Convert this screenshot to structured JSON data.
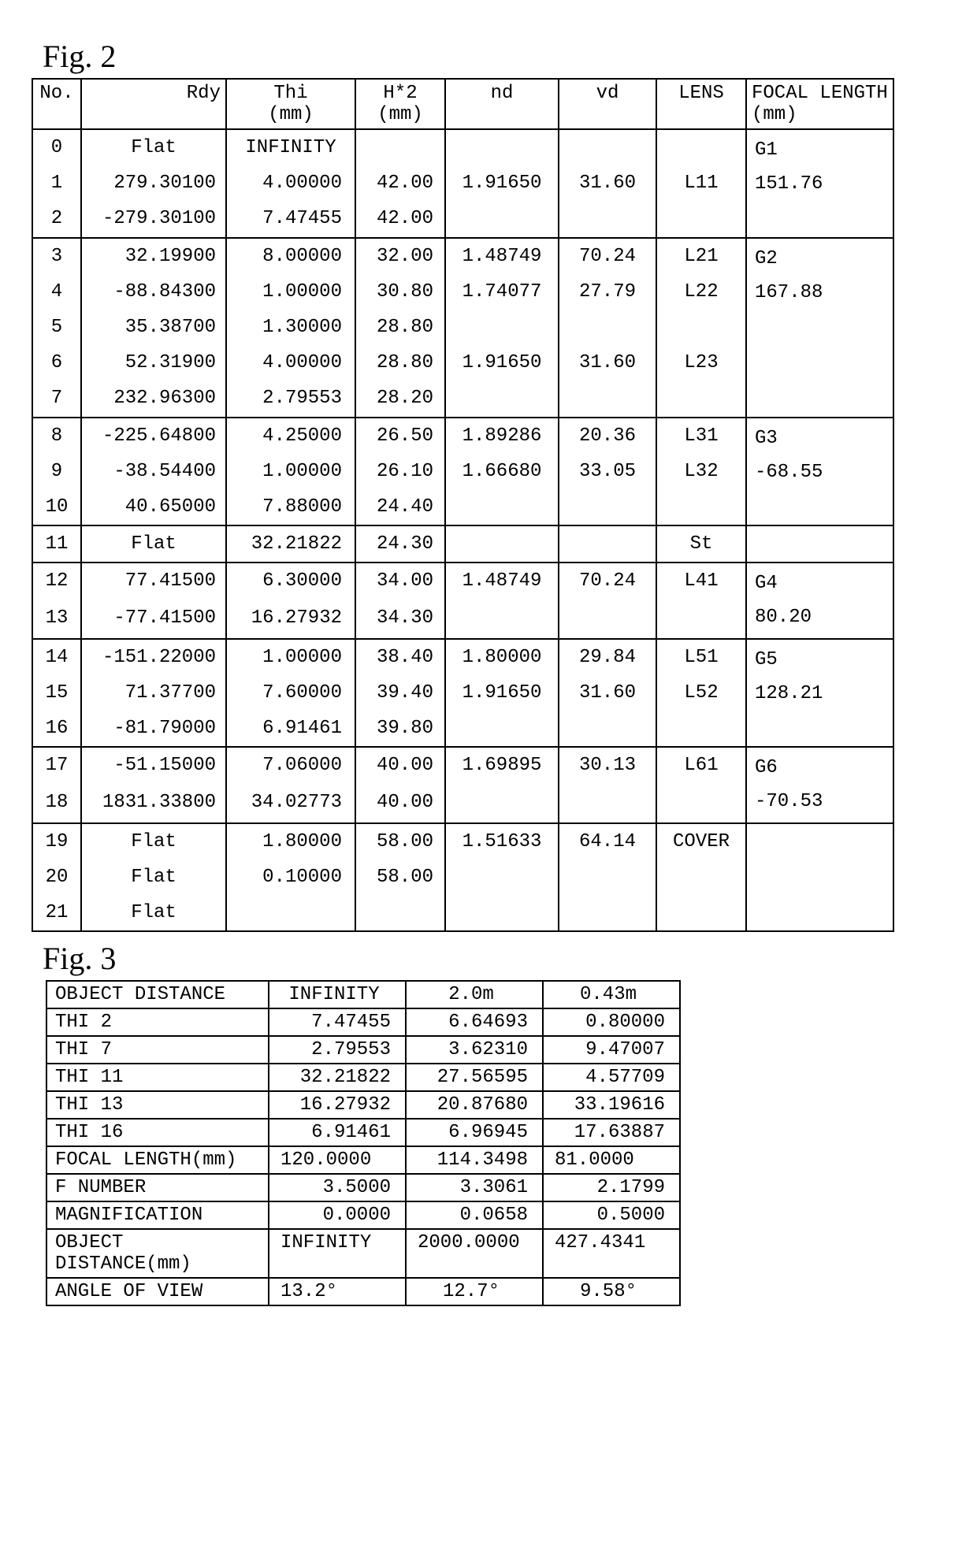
{
  "fig2": {
    "label": "Fig. 2",
    "headers": [
      "No.",
      "Rdy",
      "Thi\n(mm)",
      "H*2\n(mm)",
      "nd",
      "vd",
      "LENS",
      "FOCAL LENGTH\n(mm)"
    ],
    "groups": [
      {
        "rows": [
          {
            "no": "0",
            "rdy": "Flat",
            "rdyC": true,
            "thi": "INFINITY",
            "thiC": true,
            "h2": "",
            "nd": "",
            "vd": "",
            "lens": ""
          },
          {
            "no": "1",
            "rdy": "279.30100",
            "thi": "4.00000",
            "h2": "42.00",
            "nd": "1.91650",
            "vd": "31.60",
            "lens": "L11"
          },
          {
            "no": "2",
            "rdy": "-279.30100",
            "thi": "7.47455",
            "h2": "42.00",
            "nd": "",
            "vd": "",
            "lens": ""
          }
        ],
        "focal": "G1\n151.76"
      },
      {
        "rows": [
          {
            "no": "3",
            "rdy": "32.19900",
            "thi": "8.00000",
            "h2": "32.00",
            "nd": "1.48749",
            "vd": "70.24",
            "lens": "L21"
          },
          {
            "no": "4",
            "rdy": "-88.84300",
            "thi": "1.00000",
            "h2": "30.80",
            "nd": "1.74077",
            "vd": "27.79",
            "lens": "L22"
          },
          {
            "no": "5",
            "rdy": "35.38700",
            "thi": "1.30000",
            "h2": "28.80",
            "nd": "",
            "vd": "",
            "lens": ""
          },
          {
            "no": "6",
            "rdy": "52.31900",
            "thi": "4.00000",
            "h2": "28.80",
            "nd": "1.91650",
            "vd": "31.60",
            "lens": "L23"
          },
          {
            "no": "7",
            "rdy": "232.96300",
            "thi": "2.79553",
            "h2": "28.20",
            "nd": "",
            "vd": "",
            "lens": ""
          }
        ],
        "focal": "G2\n167.88"
      },
      {
        "rows": [
          {
            "no": "8",
            "rdy": "-225.64800",
            "thi": "4.25000",
            "h2": "26.50",
            "nd": "1.89286",
            "vd": "20.36",
            "lens": "L31"
          },
          {
            "no": "9",
            "rdy": "-38.54400",
            "thi": "1.00000",
            "h2": "26.10",
            "nd": "1.66680",
            "vd": "33.05",
            "lens": "L32"
          },
          {
            "no": "10",
            "rdy": "40.65000",
            "thi": "7.88000",
            "h2": "24.40",
            "nd": "",
            "vd": "",
            "lens": ""
          }
        ],
        "focal": "G3\n-68.55"
      },
      {
        "rows": [
          {
            "no": "11",
            "rdy": "Flat",
            "rdyC": true,
            "thi": "32.21822",
            "h2": "24.30",
            "nd": "",
            "vd": "",
            "lens": "St"
          }
        ],
        "focal": ""
      },
      {
        "rows": [
          {
            "no": "12",
            "rdy": "77.41500",
            "thi": "6.30000",
            "h2": "34.00",
            "nd": "1.48749",
            "vd": "70.24",
            "lens": "L41"
          },
          {
            "no": "13",
            "rdy": "-77.41500",
            "thi": "16.27932",
            "h2": "34.30",
            "nd": "",
            "vd": "",
            "lens": ""
          }
        ],
        "focal": "G4\n80.20"
      },
      {
        "rows": [
          {
            "no": "14",
            "rdy": "-151.22000",
            "thi": "1.00000",
            "h2": "38.40",
            "nd": "1.80000",
            "vd": "29.84",
            "lens": "L51"
          },
          {
            "no": "15",
            "rdy": "71.37700",
            "thi": "7.60000",
            "h2": "39.40",
            "nd": "1.91650",
            "vd": "31.60",
            "lens": "L52"
          },
          {
            "no": "16",
            "rdy": "-81.79000",
            "thi": "6.91461",
            "h2": "39.80",
            "nd": "",
            "vd": "",
            "lens": ""
          }
        ],
        "focal": "G5\n128.21"
      },
      {
        "rows": [
          {
            "no": "17",
            "rdy": "-51.15000",
            "thi": "7.06000",
            "h2": "40.00",
            "nd": "1.69895",
            "vd": "30.13",
            "lens": "L61"
          },
          {
            "no": "18",
            "rdy": "1831.33800",
            "thi": "34.02773",
            "h2": "40.00",
            "nd": "",
            "vd": "",
            "lens": ""
          }
        ],
        "focal": "G6\n-70.53"
      },
      {
        "rows": [
          {
            "no": "19",
            "rdy": "Flat",
            "rdyC": true,
            "thi": "1.80000",
            "h2": "58.00",
            "nd": "1.51633",
            "vd": "64.14",
            "lens": "COVER"
          },
          {
            "no": "20",
            "rdy": "Flat",
            "rdyC": true,
            "thi": "0.10000",
            "h2": "58.00",
            "nd": "",
            "vd": "",
            "lens": ""
          },
          {
            "no": "21",
            "rdy": "Flat",
            "rdyC": true,
            "thi": "",
            "h2": "",
            "nd": "",
            "vd": "",
            "lens": ""
          }
        ],
        "focal": ""
      }
    ]
  },
  "fig3": {
    "label": "Fig. 3",
    "rows": [
      {
        "label": "OBJECT DISTANCE",
        "v1": "INFINITY",
        "a1": "c",
        "v2": "2.0m",
        "a2": "c",
        "v3": "0.43m",
        "a3": "c"
      },
      {
        "label": "THI 2",
        "v1": "7.47455",
        "v2": "6.64693",
        "v3": "0.80000"
      },
      {
        "label": "THI 7",
        "v1": "2.79553",
        "v2": "3.62310",
        "v3": "9.47007"
      },
      {
        "label": "THI 11",
        "v1": "32.21822",
        "v2": "27.56595",
        "v3": "4.57709"
      },
      {
        "label": "THI 13",
        "v1": "16.27932",
        "v2": "20.87680",
        "v3": "33.19616"
      },
      {
        "label": "THI 16",
        "v1": "6.91461",
        "v2": "6.96945",
        "v3": "17.63887"
      },
      {
        "label": "FOCAL LENGTH(mm)",
        "v1": "120.0000",
        "a1": "l",
        "v2": "114.3498",
        "v3": "81.0000",
        "a3": "l"
      },
      {
        "label": "F NUMBER",
        "v1": "3.5000",
        "v2": "3.3061",
        "v3": "2.1799"
      },
      {
        "label": "MAGNIFICATION",
        "v1": "0.0000",
        "v2": "0.0658",
        "v3": "0.5000"
      },
      {
        "label": "OBJECT DISTANCE(mm)",
        "v1": "INFINITY",
        "a1": "l",
        "v2": "2000.0000",
        "a2": "l",
        "v3": "427.4341",
        "a3": "l"
      },
      {
        "label": "ANGLE OF VIEW",
        "v1": "13.2°",
        "a1": "l",
        "v2": "12.7°",
        "a2": "c",
        "v3": "9.58°",
        "a3": "c"
      }
    ]
  }
}
